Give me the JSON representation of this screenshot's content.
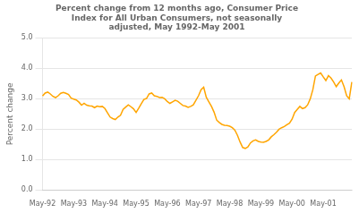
{
  "chart_data": {
    "type": "line",
    "title": "Percent change from 12 months ago, Consumer Price\nIndex for All Urban Consumers, not seasonally\nadjusted, May 1992-May 2001",
    "ylabel": "Percent change",
    "color": "#FFA500",
    "grid": true,
    "ylim": [
      0.0,
      5.0
    ],
    "yticks": [
      {
        "value": 0.0,
        "label": "0.0"
      },
      {
        "value": 1.0,
        "label": "1.0"
      },
      {
        "value": 2.0,
        "label": "2.0"
      },
      {
        "value": 3.0,
        "label": "3.0"
      },
      {
        "value": 4.0,
        "label": "4.0"
      },
      {
        "value": 5.0,
        "label": "5.0"
      }
    ],
    "categories": [
      "May-92",
      null,
      null,
      null,
      null,
      null,
      null,
      null,
      null,
      null,
      null,
      null,
      "May-93",
      null,
      null,
      null,
      null,
      null,
      null,
      null,
      null,
      null,
      null,
      null,
      "May-94",
      null,
      null,
      null,
      null,
      null,
      null,
      null,
      null,
      null,
      null,
      null,
      "May-95",
      null,
      null,
      null,
      null,
      null,
      null,
      null,
      null,
      null,
      null,
      null,
      "May-96",
      null,
      null,
      null,
      null,
      null,
      null,
      null,
      null,
      null,
      null,
      null,
      "May-97",
      null,
      null,
      null,
      null,
      null,
      null,
      null,
      null,
      null,
      null,
      null,
      "May-98",
      null,
      null,
      null,
      null,
      null,
      null,
      null,
      null,
      null,
      null,
      null,
      "May-99",
      null,
      null,
      null,
      null,
      null,
      null,
      null,
      null,
      null,
      null,
      null,
      "May-00",
      null,
      null,
      null,
      null,
      null,
      null,
      null,
      null,
      null,
      null,
      null,
      "May-01",
      null,
      null,
      null,
      null,
      null,
      null,
      null,
      null,
      null,
      null,
      null
    ],
    "values": [
      3.09,
      3.19,
      3.22,
      3.16,
      3.08,
      3.04,
      3.1,
      3.18,
      3.21,
      3.18,
      3.14,
      3.02,
      2.99,
      2.96,
      2.89,
      2.79,
      2.85,
      2.79,
      2.77,
      2.76,
      2.71,
      2.76,
      2.74,
      2.75,
      2.68,
      2.54,
      2.4,
      2.35,
      2.32,
      2.4,
      2.46,
      2.65,
      2.73,
      2.8,
      2.74,
      2.67,
      2.55,
      2.69,
      2.84,
      2.98,
      3.01,
      3.16,
      3.19,
      3.1,
      3.08,
      3.04,
      3.05,
      3.0,
      2.91,
      2.85,
      2.9,
      2.95,
      2.92,
      2.85,
      2.78,
      2.76,
      2.72,
      2.75,
      2.8,
      2.95,
      3.1,
      3.3,
      3.38,
      3.05,
      2.9,
      2.75,
      2.56,
      2.3,
      2.22,
      2.16,
      2.13,
      2.12,
      2.1,
      2.05,
      1.97,
      1.8,
      1.58,
      1.4,
      1.37,
      1.42,
      1.55,
      1.62,
      1.65,
      1.6,
      1.58,
      1.57,
      1.6,
      1.65,
      1.75,
      1.82,
      1.9,
      2.0,
      2.05,
      2.09,
      2.15,
      2.2,
      2.33,
      2.55,
      2.65,
      2.75,
      2.68,
      2.71,
      2.8,
      3.0,
      3.3,
      3.75,
      3.8,
      3.85,
      3.72,
      3.6,
      3.76,
      3.68,
      3.55,
      3.4,
      3.52,
      3.62,
      3.4,
      3.1,
      3.0,
      3.55
    ]
  }
}
